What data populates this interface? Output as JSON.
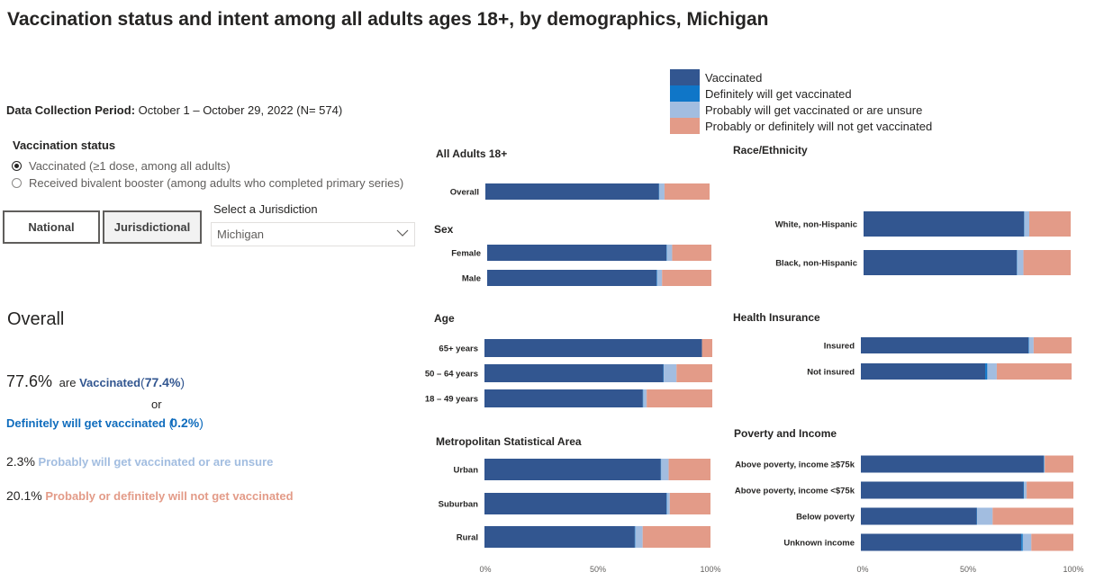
{
  "title": "Vaccination status and intent among all adults ages 18+, by demographics, Michigan",
  "period": {
    "label": "Data Collection Period:",
    "value": "October 1 – October 29, 2022  (N= 574)"
  },
  "vaccination_status": {
    "label": "Vaccination status",
    "options": [
      {
        "label": "Vaccinated (≥1 dose, among all adults)",
        "selected": true
      },
      {
        "label": "Received bivalent booster (among adults who completed primary series)",
        "selected": false
      }
    ]
  },
  "buttons": {
    "national": "National",
    "jurisdictional": "Jurisdictional"
  },
  "jurisdiction": {
    "label": "Select a Jurisdiction",
    "value": "Michigan"
  },
  "overall": {
    "title": "Overall",
    "vacc_total": "77.6%",
    "are": "are",
    "vaccinated_label": "Vaccinated",
    "vaccinated_value": "77.4%",
    "or": "or",
    "definitely_label": "Definitely will get vaccinated",
    "definitely_value": "0.2%",
    "probably_value": "2.3%",
    "probably_label": "Probably will get vaccinated or are unsure",
    "not_value": "20.1%",
    "not_label": "Probably or definitely will not get vaccinated"
  },
  "legend": [
    {
      "label": "Vaccinated",
      "color": "#325690"
    },
    {
      "label": "Definitely will get vaccinated",
      "color": "#0f76c8"
    },
    {
      "label": "Probably will get vaccinated or are unsure",
      "color": "#a2bde0"
    },
    {
      "label": "Probably or definitely will not get vaccinated",
      "color": "#e39b88"
    }
  ],
  "axis_ticks": [
    "0%",
    "50%",
    "100%"
  ],
  "chart_data": [
    {
      "type": "bar",
      "stacked": true,
      "orientation": "horizontal",
      "title": "All Adults 18+",
      "categories": [
        "Overall"
      ],
      "series": [
        {
          "name": "Vaccinated",
          "values": [
            77.4
          ]
        },
        {
          "name": "Definitely will get vaccinated",
          "values": [
            0.2
          ]
        },
        {
          "name": "Probably will get vaccinated or are unsure",
          "values": [
            2.3
          ]
        },
        {
          "name": "Probably or definitely will not get vaccinated",
          "values": [
            20.1
          ]
        }
      ]
    },
    {
      "type": "bar",
      "stacked": true,
      "orientation": "horizontal",
      "title": "Sex",
      "categories": [
        "Female",
        "Male"
      ],
      "series": [
        {
          "name": "Vaccinated",
          "values": [
            80,
            75.5
          ]
        },
        {
          "name": "Definitely will get vaccinated",
          "values": [
            0.2,
            0.2
          ]
        },
        {
          "name": "Probably will get vaccinated or are unsure",
          "values": [
            2.3,
            2.3
          ]
        },
        {
          "name": "Probably or definitely will not get vaccinated",
          "values": [
            17.5,
            22
          ]
        }
      ]
    },
    {
      "type": "bar",
      "stacked": true,
      "orientation": "horizontal",
      "title": "Age",
      "categories": [
        "65+ years",
        "50 – 64 years",
        "18 – 49 years"
      ],
      "series": [
        {
          "name": "Vaccinated",
          "values": [
            95.5,
            78.5,
            69.5
          ]
        },
        {
          "name": "Definitely will get vaccinated",
          "values": [
            0,
            0.2,
            0.2
          ]
        },
        {
          "name": "Probably will get vaccinated or are unsure",
          "values": [
            0,
            5.6,
            1.5
          ]
        },
        {
          "name": "Probably or definitely will not get vaccinated",
          "values": [
            4.5,
            15.7,
            28.8
          ]
        }
      ]
    },
    {
      "type": "bar",
      "stacked": true,
      "orientation": "horizontal",
      "title": "Metropolitan Statistical Area",
      "categories": [
        "Urban",
        "Suburban",
        "Rural"
      ],
      "series": [
        {
          "name": "Vaccinated",
          "values": [
            78,
            80.5,
            66.5
          ]
        },
        {
          "name": "Definitely will get vaccinated",
          "values": [
            0.2,
            0.2,
            0.2
          ]
        },
        {
          "name": "Probably will get vaccinated or are unsure",
          "values": [
            3.3,
            1.3,
            3.3
          ]
        },
        {
          "name": "Probably or definitely will not get vaccinated",
          "values": [
            18.5,
            18,
            30
          ]
        }
      ]
    },
    {
      "type": "bar",
      "stacked": true,
      "orientation": "horizontal",
      "title": "Race/Ethnicity",
      "categories": [
        "White, non-Hispanic",
        "Black, non-Hispanic"
      ],
      "series": [
        {
          "name": "Vaccinated",
          "values": [
            77.5,
            74
          ]
        },
        {
          "name": "Definitely will get vaccinated",
          "values": [
            0.2,
            0.2
          ]
        },
        {
          "name": "Probably will get vaccinated or are unsure",
          "values": [
            2.3,
            3
          ]
        },
        {
          "name": "Probably or definitely will not get vaccinated",
          "values": [
            20,
            22.8
          ]
        }
      ]
    },
    {
      "type": "bar",
      "stacked": true,
      "orientation": "horizontal",
      "title": "Health Insurance",
      "categories": [
        "Insured",
        "Not insured"
      ],
      "series": [
        {
          "name": "Vaccinated",
          "values": [
            79.5,
            59
          ]
        },
        {
          "name": "Definitely will get vaccinated",
          "values": [
            0.2,
            1
          ]
        },
        {
          "name": "Probably will get vaccinated or are unsure",
          "values": [
            2.3,
            4.5
          ]
        },
        {
          "name": "Probably or definitely will not get vaccinated",
          "values": [
            18,
            35.5
          ]
        }
      ]
    },
    {
      "type": "bar",
      "stacked": true,
      "orientation": "horizontal",
      "title": "Poverty and Income",
      "categories": [
        "Above poverty, income ≥$75k",
        "Above poverty, income <$75k",
        "Below poverty",
        "Unknown income"
      ],
      "series": [
        {
          "name": "Vaccinated",
          "values": [
            86,
            76.5,
            54.5,
            75.5
          ]
        },
        {
          "name": "Definitely will get vaccinated",
          "values": [
            0.2,
            0.2,
            0.2,
            0.7
          ]
        },
        {
          "name": "Probably will get vaccinated or are unsure",
          "values": [
            0.3,
            1.3,
            7.3,
            4
          ]
        },
        {
          "name": "Probably or definitely will not get vaccinated",
          "values": [
            13.5,
            22,
            38,
            19.8
          ]
        }
      ]
    }
  ]
}
